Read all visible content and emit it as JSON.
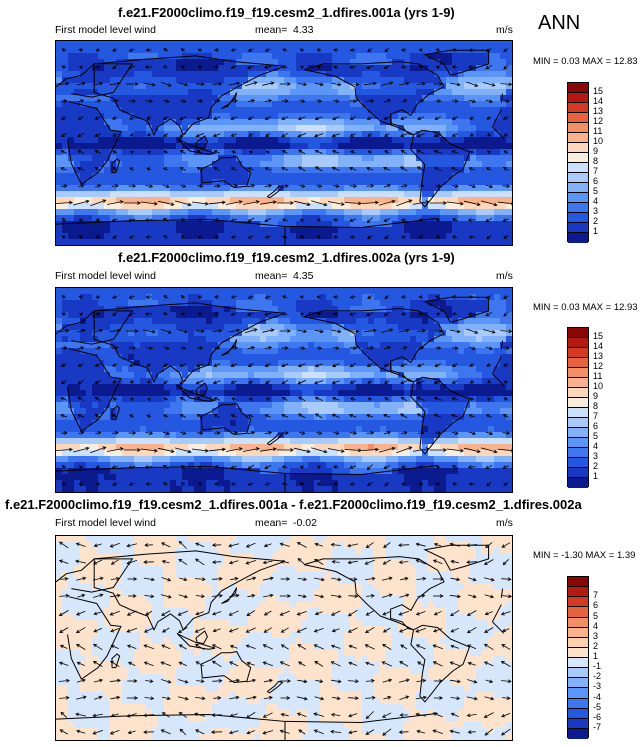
{
  "season": "ANN",
  "colors": {
    "abs_scale": [
      "#0b1a8e",
      "#1739c4",
      "#2458e0",
      "#3d76ee",
      "#5b95f5",
      "#80b1f9",
      "#a8cbfb",
      "#cbe0fc",
      "#f8eedd",
      "#fdd7ba",
      "#f9b28c",
      "#f48e64",
      "#e8623e",
      "#d43a23",
      "#b51a12",
      "#8a0707"
    ],
    "diff_scale": [
      "#0b1a8e",
      "#1739c4",
      "#2458e0",
      "#3d76ee",
      "#5b95f5",
      "#80b1f9",
      "#a8cbfb",
      "#d6e6fb",
      "#fde3cc",
      "#fdd0ae",
      "#f9b28c",
      "#f48e64",
      "#e8623e",
      "#d43a23",
      "#b51a12",
      "#8a0707"
    ]
  },
  "chart_data": [
    {
      "type": "heatmap",
      "title": "f.e21.F2000climo.f19_f19.cesm2_1.dfires.001a (yrs 1-9)",
      "left_label": "First model level wind",
      "mean_label": "mean=",
      "mean": "4.33",
      "units": "m/s",
      "min_label": "MIN =",
      "min": "0.03",
      "max_label": "MAX =",
      "max": "12.83",
      "levels": [
        "15",
        "14",
        "13",
        "12",
        "11",
        "10",
        "9",
        "8",
        "7",
        "6",
        "5",
        "4",
        "3",
        "2",
        "1"
      ]
    },
    {
      "type": "heatmap",
      "title": "f.e21.F2000climo.f19_f19.cesm2_1.dfires.002a (yrs 1-9)",
      "left_label": "First model level wind",
      "mean_label": "mean=",
      "mean": "4.35",
      "units": "m/s",
      "min_label": "MIN =",
      "min": "0.03",
      "max_label": "MAX =",
      "max": "12.93",
      "levels": [
        "15",
        "14",
        "13",
        "12",
        "11",
        "10",
        "9",
        "8",
        "7",
        "6",
        "5",
        "4",
        "3",
        "2",
        "1"
      ]
    },
    {
      "type": "heatmap",
      "title": "f.e21.F2000climo.f19_f19.cesm2_1.dfires.001a - f.e21.F2000climo.f19_f19.cesm2_1.dfires.002a",
      "left_label": "First model level wind",
      "mean_label": "mean=",
      "mean": "-0.02",
      "units": "m/s",
      "min_label": "MIN =",
      "min": "-1.30",
      "max_label": "MAX =",
      "max": "1.39",
      "levels": [
        "7",
        "6",
        "5",
        "4",
        "3",
        "2",
        "1",
        "-1",
        "-2",
        "-3",
        "-4",
        "-5",
        "-6",
        "-7"
      ]
    }
  ]
}
